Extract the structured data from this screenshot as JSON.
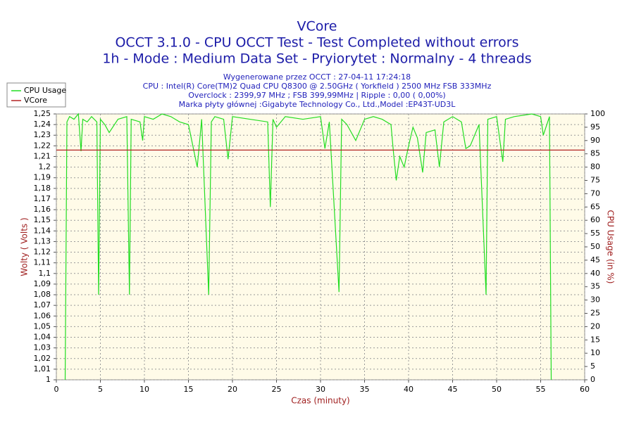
{
  "chart_data": {
    "type": "line",
    "title": "VCore",
    "subtitle": [
      "OCCT 3.1.0 - CPU OCCT Test - Test Completed without errors",
      "1h - Mode : Medium Data Set - Pryiorytet : Normalny - 4 threads"
    ],
    "info": [
      "Wygenerowane przez OCCT : 27-04-11 17:24:18",
      "CPU : Intel(R) Core(TM)2 Quad CPU Q8300 @ 2.50GHz ( Yorkfield ) 2500 MHz FSB 333MHz",
      "Overclock : 2399,97 MHz ; FSB 399,99MHz | Ripple : 0,00 ( 0,00%)",
      "Marka płyty głównej :Gigabyte Technology Co., Ltd.,Model :EP43T-UD3L"
    ],
    "xlabel": "Czas (minuty)",
    "ylabel": "Wolty ( Volts )",
    "y2label": "CPU Usage (in %)",
    "xlim": [
      0,
      60
    ],
    "xticks": [
      0,
      5,
      10,
      15,
      20,
      25,
      30,
      35,
      40,
      45,
      50,
      55,
      60
    ],
    "ylim": [
      1,
      1.25
    ],
    "yticks": [
      1,
      {
        "value": 1.01,
        "label": "1,01"
      },
      {
        "value": 1.02,
        "label": "1,02"
      },
      {
        "value": 1.03,
        "label": "1,03"
      },
      {
        "value": 1.04,
        "label": "1,04"
      },
      {
        "value": 1.05,
        "label": "1,05"
      },
      {
        "value": 1.06,
        "label": "1,06"
      },
      {
        "value": 1.07,
        "label": "1,07"
      },
      {
        "value": 1.08,
        "label": "1,08"
      },
      {
        "value": 1.09,
        "label": "1,09"
      },
      {
        "value": 1.1,
        "label": "1,1"
      },
      {
        "value": 1.11,
        "label": "1,11"
      },
      {
        "value": 1.12,
        "label": "1,12"
      },
      {
        "value": 1.13,
        "label": "1,13"
      },
      {
        "value": 1.14,
        "label": "1,14"
      },
      {
        "value": 1.15,
        "label": "1,15"
      },
      {
        "value": 1.16,
        "label": "1,16"
      },
      {
        "value": 1.17,
        "label": "1,17"
      },
      {
        "value": 1.18,
        "label": "1,18"
      },
      {
        "value": 1.19,
        "label": "1,19"
      },
      {
        "value": 1.2,
        "label": "1,2"
      },
      {
        "value": 1.21,
        "label": "1,21"
      },
      {
        "value": 1.22,
        "label": "1,22"
      },
      {
        "value": 1.23,
        "label": "1,23"
      },
      {
        "value": 1.24,
        "label": "1,24"
      },
      {
        "value": 1.25,
        "label": "1,25"
      }
    ],
    "y2lim": [
      0,
      100
    ],
    "y2ticks": [
      0,
      5,
      10,
      15,
      20,
      25,
      30,
      35,
      40,
      45,
      50,
      55,
      60,
      65,
      70,
      75,
      80,
      85,
      90,
      95,
      100
    ],
    "grid": true,
    "legend": "upper left",
    "series": [
      {
        "name": "CPU Usage",
        "color": "#22dd22",
        "axis": "y2",
        "x": [
          1.0,
          1.2,
          1.5,
          2,
          2.5,
          2.8,
          3.0,
          3.5,
          4,
          4.6,
          4.8,
          5.0,
          5.5,
          6,
          7,
          8,
          8.3,
          8.5,
          9.5,
          9.8,
          10,
          11,
          12,
          13,
          14,
          15,
          15.5,
          16,
          16.5,
          17.3,
          17.6,
          18,
          19,
          19.5,
          20,
          22,
          24,
          24.3,
          24.6,
          25,
          26,
          28,
          30,
          30.5,
          31,
          32.1,
          32.4,
          33,
          34,
          35,
          36,
          37,
          38,
          38.3,
          38.6,
          39,
          39.5,
          40,
          40.5,
          41,
          41.6,
          42,
          43,
          43.5,
          44,
          45,
          46,
          46.5,
          47,
          48,
          48.8,
          49,
          50,
          50.7,
          51,
          52,
          54,
          55,
          55.3,
          56,
          56.2
        ],
        "values": [
          0,
          97,
          99,
          98,
          100,
          86,
          98,
          97,
          99,
          97,
          32,
          98,
          96,
          93,
          98,
          99,
          32,
          98,
          97,
          90,
          99,
          98,
          100,
          99,
          97,
          96,
          88,
          80,
          98,
          32,
          97,
          99,
          98,
          83,
          99,
          98,
          97,
          65,
          98,
          95,
          99,
          98,
          99,
          87,
          97,
          33,
          98,
          96,
          90,
          98,
          99,
          98,
          96,
          85,
          75,
          84,
          80,
          88,
          95,
          91,
          78,
          93,
          94,
          80,
          97,
          99,
          97,
          87,
          88,
          96,
          32,
          98,
          99,
          82,
          98,
          99,
          100,
          99,
          92,
          99,
          0
        ]
      },
      {
        "name": "VCore",
        "color": "#b22222",
        "axis": "y",
        "x": [
          0,
          60
        ],
        "values": [
          1.216,
          1.216
        ]
      }
    ]
  }
}
